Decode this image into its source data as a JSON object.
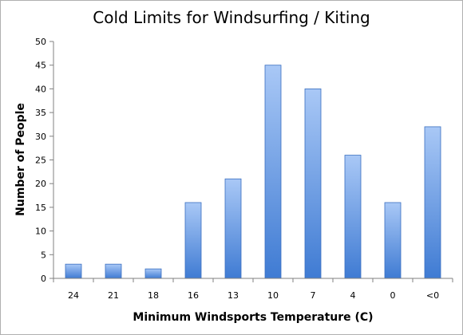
{
  "chart_data": {
    "type": "bar",
    "title": "Cold Limits for Windsurfing / Kiting",
    "xlabel": "Minimum Windsports Temperature (C)",
    "ylabel": "Number of People",
    "categories": [
      "24",
      "21",
      "18",
      "16",
      "13",
      "10",
      "7",
      "4",
      "0",
      "<0"
    ],
    "values": [
      3,
      3,
      2,
      16,
      21,
      45,
      40,
      26,
      16,
      32
    ],
    "ylim": [
      0,
      50
    ],
    "yticks": [
      "0",
      "5",
      "10",
      "15",
      "20",
      "25",
      "30",
      "35",
      "40",
      "45",
      "50"
    ],
    "grid": false,
    "legend": "none",
    "bar_color_top": "#a9c8f6",
    "bar_color_bottom": "#3f7bd3",
    "bar_border": "#3a6fc0"
  }
}
